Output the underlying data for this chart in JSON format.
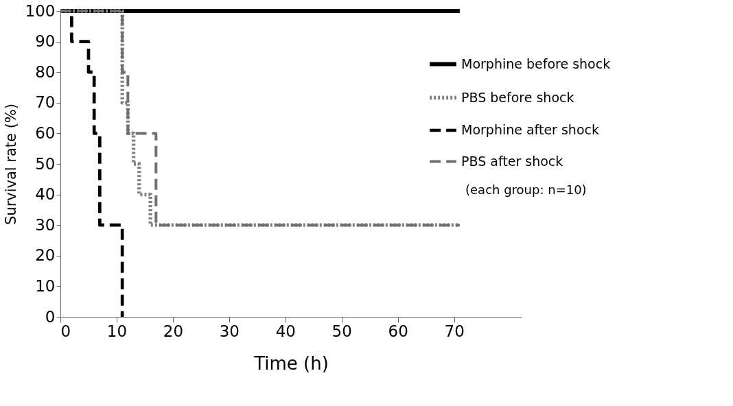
{
  "chart_data": {
    "type": "step",
    "xlabel": "Time (h)",
    "ylabel": "Survival rate (%)",
    "xlim": [
      0,
      82
    ],
    "xticks": [
      0,
      10,
      20,
      30,
      40,
      50,
      60,
      70
    ],
    "ylim": [
      0,
      100
    ],
    "yticks": [
      0,
      10,
      20,
      30,
      40,
      50,
      60,
      70,
      80,
      90,
      100
    ],
    "grid": false,
    "legend": "top right",
    "marker": "none",
    "annotations": [
      "(each group: n=10)"
    ],
    "series": [
      {
        "name": "Morphine before shock",
        "color": "#000000",
        "line_style": "solid",
        "x": [
          0,
          71
        ],
        "values": [
          100,
          100
        ]
      },
      {
        "name": "PBS before shock",
        "color": "#808080",
        "line_style": "dotted",
        "x": [
          0,
          11,
          12,
          13,
          14,
          16,
          71
        ],
        "values": [
          100,
          70,
          60,
          50,
          40,
          30,
          30
        ]
      },
      {
        "name": "Morphine after shock",
        "color": "#000000",
        "line_style": "dashed",
        "x": [
          0,
          2,
          5,
          6,
          7,
          11
        ],
        "values": [
          100,
          90,
          80,
          60,
          30,
          0
        ]
      },
      {
        "name": "PBS after shock",
        "color": "#707070",
        "line_style": "dashed",
        "x": [
          0,
          11,
          12,
          17,
          71
        ],
        "values": [
          100,
          80,
          60,
          30,
          30
        ]
      }
    ]
  }
}
